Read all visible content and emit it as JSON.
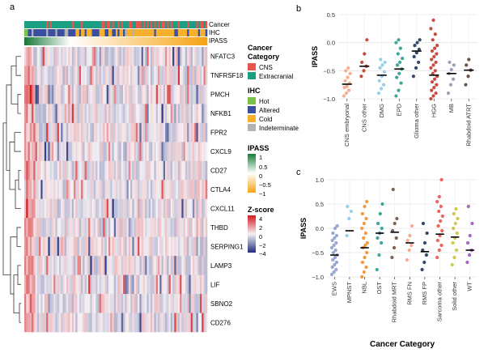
{
  "panel_labels": {
    "a": "a",
    "b": "b",
    "c": "c"
  },
  "heatmap": {
    "annotation_labels": [
      "Cancer",
      "IHC",
      "IPASS"
    ],
    "genes": [
      "NFATC3",
      "TNFRSF18",
      "PMCH",
      "NFKB1",
      "FPR2",
      "CXCL9",
      "CD27",
      "CTLA4",
      "CXCL11",
      "THBD",
      "SERPING1",
      "LAMP3",
      "LIF",
      "SBNO2",
      "CD276"
    ]
  },
  "legend": {
    "cancer_title_line1": "Cancer",
    "cancer_title_line2": "Category",
    "cancer_items": [
      {
        "label": "CNS",
        "color": "#e8554e"
      },
      {
        "label": "Extracranial",
        "color": "#1a9e84"
      }
    ],
    "ihc_title": "IHC",
    "ihc_items": [
      {
        "label": "Hot",
        "color": "#7ac24a"
      },
      {
        "label": "Altered",
        "color": "#3b4fa0"
      },
      {
        "label": "Cold",
        "color": "#f6b02c"
      },
      {
        "label": "Indeterminate",
        "color": "#b3b3b3"
      }
    ],
    "ipass_title": "IPASS",
    "ipass_ticks": [
      "1",
      "0.5",
      "0",
      "−0.5",
      "−1"
    ],
    "zscore_title": "Z-score",
    "zscore_ticks": [
      "4",
      "2",
      "0",
      "−2",
      "−4"
    ]
  },
  "chart_data": [
    {
      "type": "scatter",
      "panel": "b",
      "ylabel": "IPASS",
      "ylim": [
        -1.0,
        0.5
      ],
      "yticks": [
        "0.5",
        "0.0",
        "−0.5",
        "−1.0"
      ],
      "categories": [
        "CNS embryonal",
        "CNS other",
        "DMG",
        "EPD",
        "Glioma other",
        "HGG",
        "MB",
        "Rhabdoid ATRT"
      ],
      "colors": [
        "#f5a582",
        "#c0392b",
        "#8ecae6",
        "#2a9d8f",
        "#1d3557",
        "#c0392b",
        "#8d99ae",
        "#5c4033"
      ],
      "medians": [
        -0.74,
        -0.42,
        -0.58,
        -0.47,
        -0.15,
        -0.58,
        -0.55,
        -0.49
      ],
      "points": [
        [
          -0.95,
          -0.9,
          -0.85,
          -0.8,
          -0.78,
          -0.72,
          -0.68,
          -0.62,
          -0.55,
          -0.5,
          -0.45
        ],
        [
          -0.6,
          -0.5,
          -0.42,
          -0.35,
          -0.2,
          0.05
        ],
        [
          -0.9,
          -0.82,
          -0.75,
          -0.68,
          -0.6,
          -0.52,
          -0.45,
          -0.4,
          -0.35,
          -0.3
        ],
        [
          -0.95,
          -0.85,
          -0.72,
          -0.62,
          -0.55,
          -0.47,
          -0.4,
          -0.35,
          -0.28,
          -0.2,
          -0.1,
          0.0,
          0.05
        ],
        [
          -0.6,
          -0.45,
          -0.35,
          -0.25,
          -0.18,
          -0.12,
          -0.05,
          0.0,
          0.05
        ],
        [
          -1.0,
          -0.95,
          -0.9,
          -0.85,
          -0.8,
          -0.75,
          -0.7,
          -0.65,
          -0.6,
          -0.55,
          -0.5,
          -0.45,
          -0.4,
          -0.35,
          -0.3,
          -0.25,
          -0.2,
          -0.15,
          -0.1,
          -0.05,
          0.05,
          0.15,
          0.25,
          0.4
        ],
        [
          -0.9,
          -0.75,
          -0.65,
          -0.55,
          -0.48,
          -0.4,
          -0.35
        ],
        [
          -0.75,
          -0.6,
          -0.49,
          -0.4,
          -0.3
        ]
      ]
    },
    {
      "type": "scatter",
      "panel": "c",
      "xlabel": "Cancer Category",
      "ylabel": "IPASS",
      "ylim": [
        -1.0,
        1.0
      ],
      "yticks": [
        "1.0",
        "0.5",
        "0.0",
        "−0.5",
        "−1.0"
      ],
      "categories": [
        "EWS",
        "MPNST",
        "NBL",
        "OST",
        "Rhabdoid MRT",
        "RMS FN",
        "RMS FP",
        "Sarcoma other",
        "Solid other",
        "WT"
      ],
      "colors": [
        "#8da0cb",
        "#8ecae6",
        "#f28e2b",
        "#2a9d8f",
        "#6b5344",
        "#f5a582",
        "#1d3557",
        "#e8554e",
        "#c5c53a",
        "#9b59b6"
      ],
      "medians": [
        -0.55,
        -0.05,
        -0.4,
        -0.1,
        -0.08,
        -0.3,
        -0.48,
        -0.12,
        -0.18,
        -0.45
      ],
      "points": [
        [
          -0.95,
          -0.9,
          -0.85,
          -0.8,
          -0.75,
          -0.7,
          -0.65,
          -0.6,
          -0.55,
          -0.5,
          -0.45,
          -0.4,
          -0.35,
          -0.3,
          -0.25,
          -0.2,
          -0.15,
          -0.1,
          0.0,
          0.05
        ],
        [
          -0.15,
          0.2,
          0.35,
          0.45
        ],
        [
          -1.0,
          -0.9,
          -0.8,
          -0.7,
          -0.6,
          -0.5,
          -0.4,
          -0.35,
          -0.3,
          -0.2,
          -0.1,
          0.0,
          0.1,
          0.2,
          0.3,
          0.45,
          0.55
        ],
        [
          -0.85,
          -0.55,
          -0.3,
          -0.2,
          -0.1,
          0.0,
          0.1,
          0.3,
          0.5
        ],
        [
          -0.6,
          -0.4,
          -0.2,
          -0.05,
          0.1,
          0.2,
          0.8
        ],
        [
          -0.65,
          -0.45,
          -0.35,
          -0.25,
          -0.15,
          0.05
        ],
        [
          -0.85,
          -0.7,
          -0.55,
          -0.45,
          -0.3,
          -0.1,
          0.1
        ],
        [
          -0.6,
          -0.45,
          -0.35,
          -0.25,
          -0.15,
          -0.05,
          0.05,
          0.15,
          0.25,
          0.35,
          0.45,
          0.55,
          0.65,
          1.0
        ],
        [
          -0.75,
          -0.6,
          -0.45,
          -0.3,
          -0.2,
          -0.1,
          0.0,
          0.1,
          0.2,
          0.3,
          0.4
        ],
        [
          -0.7,
          -0.55,
          -0.45,
          -0.3,
          -0.15,
          0.1,
          0.45
        ]
      ]
    }
  ]
}
